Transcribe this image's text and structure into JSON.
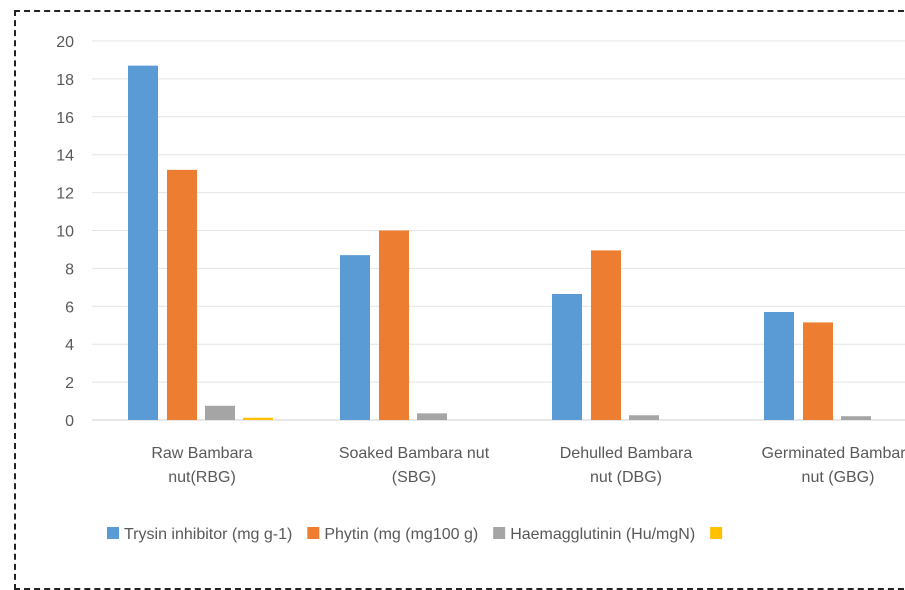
{
  "chart_data": {
    "type": "bar",
    "categories": [
      [
        "Raw Bambara",
        "nut(RBG)"
      ],
      [
        "Soaked Bambara nut",
        "(SBG)"
      ],
      [
        "Dehulled Bambara",
        "nut (DBG)"
      ],
      [
        "Germinated Bambara",
        "nut (GBG)"
      ]
    ],
    "series": [
      {
        "name": "Trysin inhibitor (mg g-1)",
        "color": "#5B9BD5",
        "values": [
          18.7,
          8.7,
          6.65,
          5.7
        ]
      },
      {
        "name": "Phytin (mg (mg100 g)",
        "color": "#ED7D31",
        "values": [
          13.2,
          10.0,
          8.95,
          5.15
        ]
      },
      {
        "name": "Haemagglutinin (Hu/mgN)",
        "color": "#A5A5A5",
        "values": [
          0.75,
          0.35,
          0.25,
          0.2
        ]
      },
      {
        "name": "",
        "color": "#FFC000",
        "values": [
          0.12,
          0.0,
          0.0,
          0.0
        ]
      }
    ],
    "yticks": [
      0,
      2,
      4,
      6,
      8,
      10,
      12,
      14,
      16,
      18,
      20
    ],
    "ylim": [
      0,
      20
    ],
    "grid": true,
    "legend_position": "bottom",
    "title": "",
    "xlabel": "",
    "ylabel": ""
  }
}
